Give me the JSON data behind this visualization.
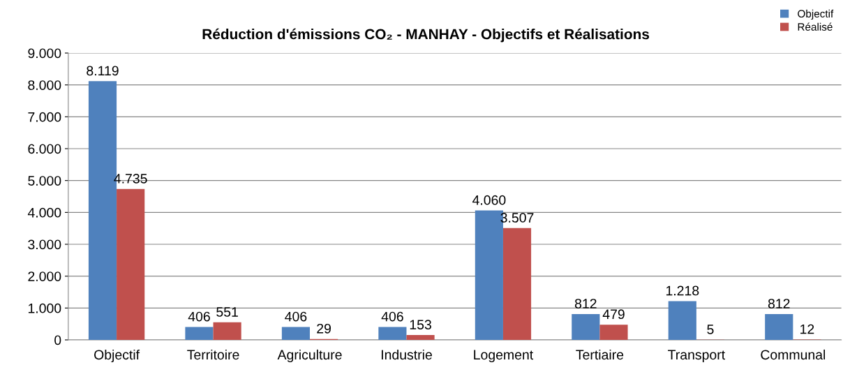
{
  "chart_data": {
    "type": "bar",
    "title": "Réduction d'émissions CO₂ - MANHAY - Objectifs et Réalisations",
    "categories": [
      "Objectif",
      "Territoire",
      "Agriculture",
      "Industrie",
      "Logement",
      "Tertiaire",
      "Transport",
      "Communal"
    ],
    "series": [
      {
        "name": "Objectif",
        "color": "#4f81bd",
        "values": [
          8119,
          406,
          406,
          406,
          4060,
          812,
          1218,
          812
        ],
        "value_labels": [
          "8.119",
          "406",
          "406",
          "406",
          "4.060",
          "812",
          "1.218",
          "812"
        ]
      },
      {
        "name": "Réalisé",
        "color": "#c0504d",
        "values": [
          4735,
          551,
          29,
          153,
          3507,
          479,
          5,
          12
        ],
        "value_labels": [
          "4.735",
          "551",
          "29",
          "153",
          "3.507",
          "479",
          "5",
          "12"
        ]
      }
    ],
    "ylim": [
      0,
      9000
    ],
    "yticks": [
      0,
      {
        "value": 1000,
        "label": "1.000"
      },
      {
        "value": 2000,
        "label": "2.000"
      },
      {
        "value": 3000,
        "label": "3.000"
      },
      {
        "value": 4000,
        "label": "4.000"
      },
      {
        "value": 5000,
        "label": "5.000"
      },
      {
        "value": 6000,
        "label": "6.000"
      },
      {
        "value": 7000,
        "label": "7.000"
      },
      {
        "value": 8000,
        "label": "8.000"
      },
      {
        "value": 9000,
        "label": "9.000"
      }
    ],
    "grid": "y",
    "legend": "top right"
  }
}
